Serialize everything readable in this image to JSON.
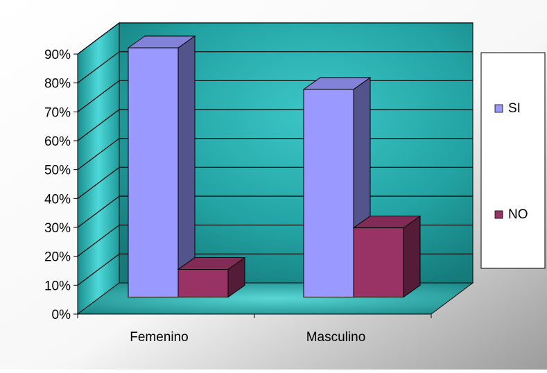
{
  "chart_data": {
    "type": "bar",
    "categories": [
      "Femenino",
      "Masculino"
    ],
    "series": [
      {
        "name": "SI",
        "values": [
          90,
          75
        ],
        "color": "#9999ff"
      },
      {
        "name": "NO",
        "values": [
          10,
          25
        ],
        "color": "#993366"
      }
    ],
    "ylim": [
      0,
      90
    ],
    "y_ticks": [
      "0%",
      "10%",
      "20%",
      "30%",
      "40%",
      "50%",
      "60%",
      "70%",
      "80%",
      "90%"
    ],
    "grid": true,
    "legend_position": "right",
    "plot_background": "#1f8a8a"
  }
}
